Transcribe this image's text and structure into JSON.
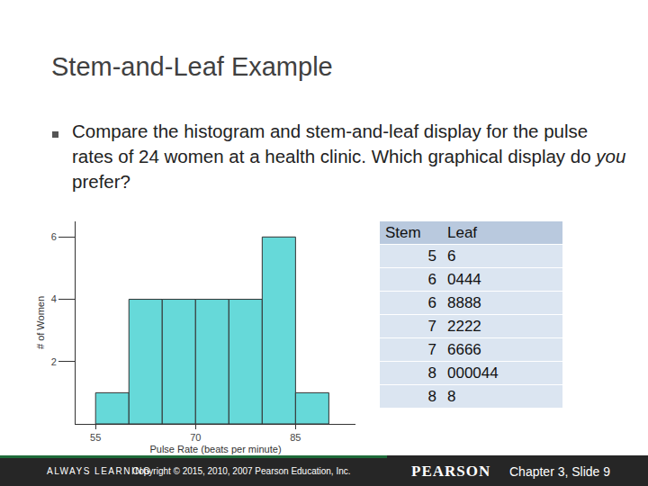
{
  "title": "Stem-and-Leaf Example",
  "bullet": {
    "before": "Compare the histogram and stem-and-leaf display for the pulse rates of 24 women at a health clinic. Which graphical display do ",
    "emphasis": "you",
    "after": " prefer?"
  },
  "chart_data": {
    "type": "histogram",
    "bins": [
      55,
      60,
      65,
      70,
      75,
      80,
      85,
      90
    ],
    "values": [
      1,
      4,
      4,
      4,
      4,
      6,
      1
    ],
    "color": "#66d9d9",
    "xlabel": "Pulse Rate (beats per minute)",
    "ylabel": "# of Women",
    "xlim": [
      52,
      94
    ],
    "ylim": [
      0,
      6.5
    ],
    "xticks": [
      55,
      70,
      85
    ],
    "yticks": [
      2,
      4,
      6
    ],
    "grid": false
  },
  "stem_and_leaf": {
    "header": [
      "Stem",
      "Leaf"
    ],
    "rows": [
      [
        5,
        "6"
      ],
      [
        6,
        "0444"
      ],
      [
        6,
        "8888"
      ],
      [
        7,
        "2222"
      ],
      [
        7,
        "6666"
      ],
      [
        8,
        "000044"
      ],
      [
        8,
        "8"
      ]
    ]
  },
  "footer": {
    "left": "ALWAYS LEARNING",
    "copyright": "Copyright © 2015, 2010, 2007 Pearson Education, Inc.",
    "brand": "PEARSON",
    "slide": "Chapter 3, Slide 9"
  }
}
